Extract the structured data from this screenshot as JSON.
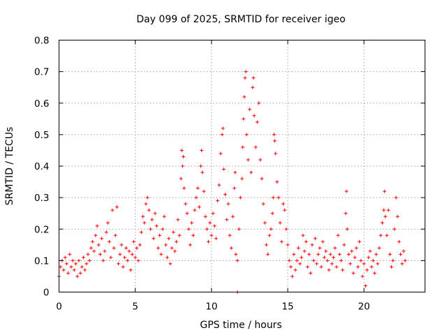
{
  "chart_data": {
    "type": "scatter",
    "title": "Day 099 of 2025, SRMTID for receiver igeo",
    "xlabel": "GPS time / hours",
    "ylabel": "SRMTID / TECUs",
    "xlim": [
      0,
      24
    ],
    "ylim": [
      0,
      0.8
    ],
    "x_ticks": [
      0,
      5,
      10,
      15,
      20
    ],
    "y_ticks": [
      0,
      0.1,
      0.2,
      0.3,
      0.4,
      0.5,
      0.6,
      0.7,
      0.8
    ],
    "grid": true,
    "marker": "plus",
    "color": "#ff0000",
    "series": [
      {
        "name": "igeo",
        "points": [
          [
            0.0,
            0.05
          ],
          [
            0.1,
            0.08
          ],
          [
            0.2,
            0.1
          ],
          [
            0.3,
            0.07
          ],
          [
            0.4,
            0.11
          ],
          [
            0.5,
            0.09
          ],
          [
            0.6,
            0.06
          ],
          [
            0.7,
            0.12
          ],
          [
            0.8,
            0.08
          ],
          [
            0.9,
            0.1
          ],
          [
            1.0,
            0.07
          ],
          [
            1.1,
            0.09
          ],
          [
            1.2,
            0.05
          ],
          [
            1.3,
            0.1
          ],
          [
            1.4,
            0.06
          ],
          [
            1.5,
            0.08
          ],
          [
            1.6,
            0.11
          ],
          [
            1.7,
            0.07
          ],
          [
            1.8,
            0.09
          ],
          [
            1.9,
            0.12
          ],
          [
            2.0,
            0.1
          ],
          [
            2.1,
            0.14
          ],
          [
            2.2,
            0.16
          ],
          [
            2.3,
            0.13
          ],
          [
            2.4,
            0.18
          ],
          [
            2.5,
            0.21
          ],
          [
            2.6,
            0.15
          ],
          [
            2.7,
            0.12
          ],
          [
            2.8,
            0.17
          ],
          [
            2.9,
            0.1
          ],
          [
            3.0,
            0.13
          ],
          [
            3.1,
            0.19
          ],
          [
            3.2,
            0.22
          ],
          [
            3.3,
            0.16
          ],
          [
            3.4,
            0.11
          ],
          [
            3.5,
            0.26
          ],
          [
            3.6,
            0.14
          ],
          [
            3.7,
            0.18
          ],
          [
            3.8,
            0.27
          ],
          [
            3.9,
            0.09
          ],
          [
            4.0,
            0.12
          ],
          [
            4.1,
            0.15
          ],
          [
            4.2,
            0.08
          ],
          [
            4.3,
            0.11
          ],
          [
            4.4,
            0.14
          ],
          [
            4.5,
            0.1
          ],
          [
            4.6,
            0.13
          ],
          [
            4.7,
            0.07
          ],
          [
            4.8,
            0.12
          ],
          [
            4.9,
            0.16
          ],
          [
            5.0,
            0.11
          ],
          [
            5.1,
            0.14
          ],
          [
            5.2,
            0.1
          ],
          [
            5.3,
            0.15
          ],
          [
            5.4,
            0.19
          ],
          [
            5.5,
            0.24
          ],
          [
            5.6,
            0.22
          ],
          [
            5.7,
            0.28
          ],
          [
            5.8,
            0.3
          ],
          [
            5.9,
            0.26
          ],
          [
            6.0,
            0.2
          ],
          [
            6.1,
            0.23
          ],
          [
            6.2,
            0.17
          ],
          [
            6.3,
            0.25
          ],
          [
            6.4,
            0.21
          ],
          [
            6.5,
            0.14
          ],
          [
            6.6,
            0.18
          ],
          [
            6.7,
            0.12
          ],
          [
            6.8,
            0.2
          ],
          [
            6.9,
            0.24
          ],
          [
            7.0,
            0.15
          ],
          [
            7.1,
            0.11
          ],
          [
            7.2,
            0.17
          ],
          [
            7.3,
            0.09
          ],
          [
            7.4,
            0.14
          ],
          [
            7.5,
            0.19
          ],
          [
            7.6,
            0.13
          ],
          [
            7.7,
            0.16
          ],
          [
            7.8,
            0.23
          ],
          [
            7.9,
            0.18
          ],
          [
            8.0,
            0.36
          ],
          [
            8.05,
            0.45
          ],
          [
            8.1,
            0.4
          ],
          [
            8.15,
            0.43
          ],
          [
            8.2,
            0.33
          ],
          [
            8.3,
            0.28
          ],
          [
            8.4,
            0.25
          ],
          [
            8.5,
            0.2
          ],
          [
            8.6,
            0.15
          ],
          [
            8.7,
            0.22
          ],
          [
            8.8,
            0.18
          ],
          [
            8.9,
            0.26
          ],
          [
            9.0,
            0.3
          ],
          [
            9.1,
            0.33
          ],
          [
            9.2,
            0.27
          ],
          [
            9.3,
            0.4
          ],
          [
            9.35,
            0.45
          ],
          [
            9.4,
            0.38
          ],
          [
            9.5,
            0.32
          ],
          [
            9.6,
            0.24
          ],
          [
            9.7,
            0.2
          ],
          [
            9.8,
            0.16
          ],
          [
            9.9,
            0.22
          ],
          [
            10.0,
            0.18
          ],
          [
            10.1,
            0.25
          ],
          [
            10.2,
            0.21
          ],
          [
            10.3,
            0.17
          ],
          [
            10.4,
            0.29
          ],
          [
            10.5,
            0.34
          ],
          [
            10.6,
            0.44
          ],
          [
            10.7,
            0.5
          ],
          [
            10.75,
            0.52
          ],
          [
            10.8,
            0.39
          ],
          [
            10.9,
            0.31
          ],
          [
            11.0,
            0.23
          ],
          [
            11.1,
            0.28
          ],
          [
            11.2,
            0.18
          ],
          [
            11.3,
            0.14
          ],
          [
            11.4,
            0.24
          ],
          [
            11.5,
            0.33
          ],
          [
            11.55,
            0.38
          ],
          [
            11.6,
            0.12
          ],
          [
            11.7,
            0.1
          ],
          [
            11.8,
            0.2
          ],
          [
            11.9,
            0.3
          ],
          [
            12.0,
            0.36
          ],
          [
            12.05,
            0.46
          ],
          [
            12.1,
            0.55
          ],
          [
            12.15,
            0.62
          ],
          [
            12.2,
            0.68
          ],
          [
            12.25,
            0.7
          ],
          [
            12.3,
            0.5
          ],
          [
            12.4,
            0.42
          ],
          [
            12.5,
            0.58
          ],
          [
            12.6,
            0.38
          ],
          [
            12.7,
            0.65
          ],
          [
            12.75,
            0.68
          ],
          [
            12.8,
            0.56
          ],
          [
            12.9,
            0.46
          ],
          [
            13.0,
            0.54
          ],
          [
            13.1,
            0.6
          ],
          [
            13.2,
            0.42
          ],
          [
            13.3,
            0.36
          ],
          [
            13.4,
            0.28
          ],
          [
            13.5,
            0.22
          ],
          [
            13.6,
            0.15
          ],
          [
            13.7,
            0.12
          ],
          [
            13.8,
            0.18
          ],
          [
            13.9,
            0.2
          ],
          [
            14.0,
            0.25
          ],
          [
            14.05,
            0.3
          ],
          [
            14.1,
            0.5
          ],
          [
            14.15,
            0.48
          ],
          [
            14.2,
            0.44
          ],
          [
            14.3,
            0.35
          ],
          [
            14.4,
            0.3
          ],
          [
            14.5,
            0.22
          ],
          [
            14.6,
            0.16
          ],
          [
            14.7,
            0.28
          ],
          [
            14.8,
            0.26
          ],
          [
            14.9,
            0.2
          ],
          [
            15.0,
            0.15
          ],
          [
            15.1,
            0.1
          ],
          [
            15.2,
            0.08
          ],
          [
            15.3,
            0.05
          ],
          [
            15.4,
            0.12
          ],
          [
            15.5,
            0.07
          ],
          [
            15.6,
            0.1
          ],
          [
            15.7,
            0.14
          ],
          [
            15.8,
            0.09
          ],
          [
            15.9,
            0.11
          ],
          [
            16.0,
            0.18
          ],
          [
            16.1,
            0.13
          ],
          [
            16.2,
            0.16
          ],
          [
            16.3,
            0.08
          ],
          [
            16.4,
            0.12
          ],
          [
            16.5,
            0.06
          ],
          [
            16.6,
            0.15
          ],
          [
            16.7,
            0.1
          ],
          [
            16.8,
            0.17
          ],
          [
            16.9,
            0.09
          ],
          [
            17.0,
            0.12
          ],
          [
            17.1,
            0.14
          ],
          [
            17.2,
            0.08
          ],
          [
            17.3,
            0.16
          ],
          [
            17.4,
            0.11
          ],
          [
            17.5,
            0.13
          ],
          [
            17.6,
            0.1
          ],
          [
            17.7,
            0.07
          ],
          [
            17.8,
            0.12
          ],
          [
            17.9,
            0.09
          ],
          [
            18.0,
            0.11
          ],
          [
            18.1,
            0.14
          ],
          [
            18.2,
            0.08
          ],
          [
            18.3,
            0.18
          ],
          [
            18.4,
            0.12
          ],
          [
            18.5,
            0.1
          ],
          [
            18.6,
            0.07
          ],
          [
            18.7,
            0.15
          ],
          [
            18.8,
            0.25
          ],
          [
            18.85,
            0.32
          ],
          [
            18.9,
            0.2
          ],
          [
            19.0,
            0.12
          ],
          [
            19.1,
            0.09
          ],
          [
            19.2,
            0.13
          ],
          [
            19.3,
            0.06
          ],
          [
            19.4,
            0.11
          ],
          [
            19.5,
            0.14
          ],
          [
            19.6,
            0.08
          ],
          [
            19.7,
            0.16
          ],
          [
            19.8,
            0.1
          ],
          [
            19.9,
            0.05
          ],
          [
            20.0,
            0.09
          ],
          [
            20.1,
            0.02
          ],
          [
            20.2,
            0.07
          ],
          [
            20.3,
            0.11
          ],
          [
            20.4,
            0.13
          ],
          [
            20.5,
            0.08
          ],
          [
            20.6,
            0.1
          ],
          [
            20.7,
            0.06
          ],
          [
            20.8,
            0.12
          ],
          [
            20.9,
            0.09
          ],
          [
            21.0,
            0.14
          ],
          [
            21.1,
            0.18
          ],
          [
            21.2,
            0.22
          ],
          [
            21.3,
            0.26
          ],
          [
            21.35,
            0.32
          ],
          [
            21.4,
            0.24
          ],
          [
            21.5,
            0.18
          ],
          [
            21.6,
            0.26
          ],
          [
            21.7,
            0.12
          ],
          [
            21.8,
            0.08
          ],
          [
            21.9,
            0.1
          ],
          [
            22.0,
            0.2
          ],
          [
            22.1,
            0.3
          ],
          [
            22.2,
            0.24
          ],
          [
            22.3,
            0.16
          ],
          [
            22.4,
            0.12
          ],
          [
            22.5,
            0.09
          ],
          [
            22.6,
            0.13
          ],
          [
            22.7,
            0.1
          ],
          [
            11.7,
            0.0
          ]
        ]
      }
    ]
  }
}
